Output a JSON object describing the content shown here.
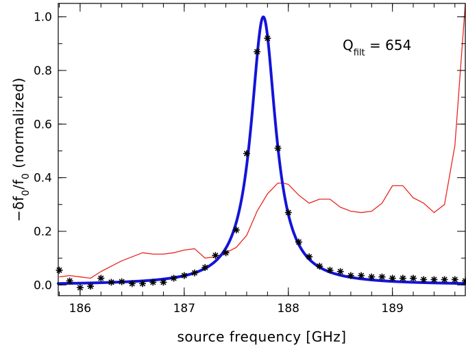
{
  "chart_data": {
    "type": "line",
    "xlabel": "source frequency [GHz]",
    "ylabel_parts": {
      "main1": "−δf",
      "sub1": "0",
      "main2": "/f",
      "sub2": "0",
      "rest": " (normalized)"
    },
    "annotation": {
      "main": "Q",
      "sub": "filt",
      "rest": " = 654"
    },
    "xlim": [
      185.79,
      189.7
    ],
    "ylim": [
      -0.04,
      1.05
    ],
    "x_ticks": [
      186,
      187,
      188,
      189
    ],
    "x_tick_labels": [
      "186",
      "187",
      "188",
      "189"
    ],
    "x_minor_step": 0.2,
    "y_ticks": [
      0.0,
      0.2,
      0.4,
      0.6,
      0.8,
      1.0
    ],
    "y_tick_labels": [
      "0.0",
      "0.2",
      "0.4",
      "0.6",
      "0.8",
      "1.0"
    ],
    "y_minor_step": 0.1,
    "series": [
      {
        "kind": "red-trace",
        "color": "#e8241e",
        "x": [
          185.8,
          185.9,
          186.0,
          186.1,
          186.2,
          186.3,
          186.4,
          186.5,
          186.6,
          186.7,
          186.8,
          186.9,
          187.0,
          187.1,
          187.2,
          187.3,
          187.4,
          187.5,
          187.6,
          187.7,
          187.8,
          187.9,
          187.95,
          188.0,
          188.1,
          188.2,
          188.3,
          188.4,
          188.5,
          188.6,
          188.7,
          188.8,
          188.9,
          189.0,
          189.1,
          189.2,
          189.3,
          189.4,
          189.5,
          189.6,
          189.7
        ],
        "y": [
          0.03,
          0.035,
          0.03,
          0.025,
          0.05,
          0.07,
          0.09,
          0.105,
          0.12,
          0.115,
          0.115,
          0.12,
          0.13,
          0.135,
          0.1,
          0.105,
          0.12,
          0.14,
          0.185,
          0.275,
          0.34,
          0.38,
          0.38,
          0.375,
          0.335,
          0.305,
          0.32,
          0.32,
          0.29,
          0.275,
          0.27,
          0.275,
          0.305,
          0.37,
          0.37,
          0.325,
          0.305,
          0.27,
          0.3,
          0.52,
          1.05
        ]
      },
      {
        "kind": "measured-points",
        "color": "#000000",
        "x": [
          185.8,
          185.9,
          186.0,
          186.1,
          186.2,
          186.3,
          186.4,
          186.5,
          186.6,
          186.7,
          186.8,
          186.9,
          187.0,
          187.1,
          187.2,
          187.3,
          187.4,
          187.5,
          187.6,
          187.7,
          187.8,
          187.9,
          188.0,
          188.1,
          188.2,
          188.3,
          188.4,
          188.5,
          188.6,
          188.7,
          188.8,
          188.9,
          189.0,
          189.1,
          189.2,
          189.3,
          189.4,
          189.5,
          189.6,
          189.7
        ],
        "y": [
          0.055,
          0.015,
          -0.01,
          -0.005,
          0.025,
          0.01,
          0.012,
          0.005,
          0.005,
          0.01,
          0.01,
          0.025,
          0.035,
          0.045,
          0.065,
          0.11,
          0.12,
          0.205,
          0.49,
          0.87,
          0.92,
          0.51,
          0.27,
          0.16,
          0.105,
          0.07,
          0.055,
          0.05,
          0.035,
          0.035,
          0.03,
          0.03,
          0.025,
          0.025,
          0.025,
          0.02,
          0.02,
          0.02,
          0.02,
          0.015
        ]
      },
      {
        "kind": "lorentzian-fit",
        "color": "#1414d8",
        "model": "lorentzian",
        "center": 187.76,
        "q": 654,
        "amplitude": 1.0,
        "offset": 0.0
      }
    ]
  }
}
